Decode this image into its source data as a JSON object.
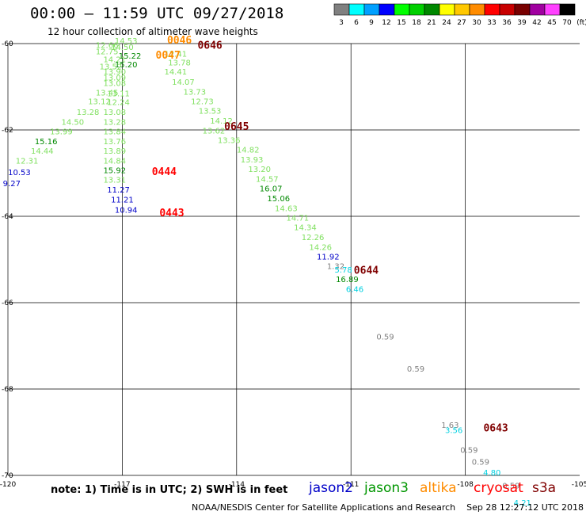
{
  "header": {
    "title": "00:00 – 11:59 UTC 09/27/2018",
    "subtitle": "12 hour collection of altimeter wave heights"
  },
  "legend_scale": {
    "labels": [
      "3",
      "6",
      "9",
      "12",
      "15",
      "18",
      "21",
      "24",
      "27",
      "30",
      "33",
      "36",
      "39",
      "42",
      "45",
      "70",
      "(ft)"
    ],
    "colors": [
      "#808080",
      "#00ffff",
      "#00a0ff",
      "#0000ff",
      "#00ff00",
      "#00d000",
      "#008800",
      "#ffff00",
      "#ffc800",
      "#ff8c00",
      "#ff0000",
      "#c80000",
      "#780000",
      "#a000a0",
      "#ff40ff",
      "#000000"
    ]
  },
  "footer": {
    "note": "note: 1) Time is in UTC; 2) SWH is in feet",
    "credit": "NOAA/NESDIS Center for Satellite Applications and Research    Sep 28 12:27:12 UTC 2018",
    "satellites": [
      {
        "name": "jason2",
        "color": "#0000c8"
      },
      {
        "name": "jason3",
        "color": "#009600"
      },
      {
        "name": "altika",
        "color": "#ff8c00"
      },
      {
        "name": "cryosat",
        "color": "#ff0000"
      },
      {
        "name": "s3a",
        "color": "#800000"
      }
    ]
  },
  "chart_data": {
    "type": "scatter",
    "title": "00:00 – 11:59 UTC 09/27/2018",
    "subtitle": "12 hour collection of altimeter wave heights",
    "xlim": [
      -120,
      -105
    ],
    "ylim": [
      -70,
      -60
    ],
    "x_ticks": [
      -120,
      -117,
      -114,
      -111,
      -108,
      -105
    ],
    "x_tick_labels": [
      "-120",
      "-117",
      "-114",
      "-111",
      "-108",
      "-105"
    ],
    "y_ticks": [
      -60,
      -62,
      -64,
      -66,
      -68,
      -70
    ],
    "y_tick_labels": [
      "-60",
      "-62",
      "-64",
      "-66",
      "-68",
      "-70"
    ],
    "series": [
      {
        "name": "pass1",
        "points": [
          {
            "x": -116.9,
            "y": -60.0,
            "v": "14.53",
            "c": "#80e060"
          },
          {
            "x": -117.0,
            "y": -60.15,
            "v": "14.50",
            "c": "#80e060"
          },
          {
            "x": -117.4,
            "y": -60.1,
            "v": "12.66",
            "c": "#80e060"
          },
          {
            "x": -117.4,
            "y": -60.25,
            "v": "12.75",
            "c": "#80e060"
          },
          {
            "x": -116.8,
            "y": -60.35,
            "v": "15.22",
            "c": "#008800"
          },
          {
            "x": -117.2,
            "y": -60.43,
            "v": "14.21",
            "c": "#80e060"
          },
          {
            "x": -116.9,
            "y": -60.55,
            "v": "15.20",
            "c": "#008800"
          },
          {
            "x": -117.3,
            "y": -60.6,
            "v": "13.52",
            "c": "#80e060"
          },
          {
            "x": -117.2,
            "y": -60.72,
            "v": "13.90",
            "c": "#80e060"
          },
          {
            "x": -117.2,
            "y": -60.85,
            "v": "13.09",
            "c": "#80e060"
          },
          {
            "x": -117.2,
            "y": -60.98,
            "v": "13.08",
            "c": "#80e060"
          },
          {
            "x": -117.4,
            "y": -61.2,
            "v": "13.45",
            "c": "#80e060"
          },
          {
            "x": -117.1,
            "y": -61.22,
            "v": "13.11",
            "c": "#80e060"
          },
          {
            "x": -117.6,
            "y": -61.4,
            "v": "13.12",
            "c": "#80e060"
          },
          {
            "x": -117.1,
            "y": -61.42,
            "v": "12.24",
            "c": "#80e060"
          },
          {
            "x": -117.9,
            "y": -61.65,
            "v": "13.28",
            "c": "#80e060"
          },
          {
            "x": -117.2,
            "y": -61.65,
            "v": "13.08",
            "c": "#80e060"
          },
          {
            "x": -118.3,
            "y": -61.88,
            "v": "14.50",
            "c": "#80e060"
          },
          {
            "x": -117.2,
            "y": -61.88,
            "v": "13.28",
            "c": "#80e060"
          },
          {
            "x": -118.6,
            "y": -62.1,
            "v": "13.99",
            "c": "#80e060"
          },
          {
            "x": -117.2,
            "y": -62.1,
            "v": "13.84",
            "c": "#80e060"
          },
          {
            "x": -119.0,
            "y": -62.33,
            "v": "15.16",
            "c": "#008800"
          },
          {
            "x": -117.2,
            "y": -62.33,
            "v": "13.76",
            "c": "#80e060"
          },
          {
            "x": -119.1,
            "y": -62.55,
            "v": "14.44",
            "c": "#80e060"
          },
          {
            "x": -117.2,
            "y": -62.55,
            "v": "13.89",
            "c": "#80e060"
          },
          {
            "x": -119.5,
            "y": -62.78,
            "v": "12.31",
            "c": "#80e060"
          },
          {
            "x": -117.2,
            "y": -62.78,
            "v": "14.84",
            "c": "#80e060"
          },
          {
            "x": -117.2,
            "y": -63.0,
            "v": "15.92",
            "c": "#008800"
          },
          {
            "x": -119.7,
            "y": -63.05,
            "v": "10.53",
            "c": "#0000c8"
          },
          {
            "x": -117.2,
            "y": -63.22,
            "v": "13.31",
            "c": "#80e060"
          },
          {
            "x": -119.9,
            "y": -63.3,
            "v": "9.27",
            "c": "#0000c8"
          },
          {
            "x": -117.1,
            "y": -63.45,
            "v": "11.27",
            "c": "#0000c8"
          },
          {
            "x": -117.0,
            "y": -63.68,
            "v": "11.21",
            "c": "#0000c8"
          },
          {
            "x": -116.9,
            "y": -63.92,
            "v": "10.94",
            "c": "#0000c8"
          }
        ]
      },
      {
        "name": "pass2",
        "points": [
          {
            "x": -115.6,
            "y": -60.3,
            "v": "12.41",
            "c": "#80e060"
          },
          {
            "x": -115.5,
            "y": -60.5,
            "v": "13.78",
            "c": "#80e060"
          },
          {
            "x": -115.6,
            "y": -60.72,
            "v": "14.41",
            "c": "#80e060"
          },
          {
            "x": -115.4,
            "y": -60.95,
            "v": "14.07",
            "c": "#80e060"
          },
          {
            "x": -115.1,
            "y": -61.18,
            "v": "13.73",
            "c": "#80e060"
          },
          {
            "x": -114.9,
            "y": -61.4,
            "v": "12.73",
            "c": "#80e060"
          },
          {
            "x": -114.7,
            "y": -61.62,
            "v": "13.53",
            "c": "#80e060"
          },
          {
            "x": -114.4,
            "y": -61.85,
            "v": "14.12",
            "c": "#80e060"
          },
          {
            "x": -114.6,
            "y": -62.08,
            "v": "13.62",
            "c": "#80e060"
          },
          {
            "x": -114.2,
            "y": -62.3,
            "v": "13.36",
            "c": "#80e060"
          },
          {
            "x": -113.7,
            "y": -62.52,
            "v": "14.82",
            "c": "#80e060"
          },
          {
            "x": -113.6,
            "y": -62.75,
            "v": "13.93",
            "c": "#80e060"
          },
          {
            "x": -113.4,
            "y": -62.97,
            "v": "13.20",
            "c": "#80e060"
          },
          {
            "x": -113.2,
            "y": -63.2,
            "v": "14.57",
            "c": "#80e060"
          },
          {
            "x": -113.1,
            "y": -63.42,
            "v": "16.07",
            "c": "#008800"
          },
          {
            "x": -112.9,
            "y": -63.65,
            "v": "15.06",
            "c": "#008800"
          },
          {
            "x": -112.7,
            "y": -63.88,
            "v": "14.63",
            "c": "#80e060"
          },
          {
            "x": -112.4,
            "y": -64.1,
            "v": "14.71",
            "c": "#80e060"
          },
          {
            "x": -112.2,
            "y": -64.32,
            "v": "14.34",
            "c": "#80e060"
          },
          {
            "x": -112.0,
            "y": -64.55,
            "v": "12.26",
            "c": "#80e060"
          },
          {
            "x": -111.8,
            "y": -64.78,
            "v": "14.26",
            "c": "#80e060"
          },
          {
            "x": -111.6,
            "y": -65.0,
            "v": "11.92",
            "c": "#0000c8"
          },
          {
            "x": -111.4,
            "y": -65.22,
            "v": "1.32",
            "c": "#808080"
          },
          {
            "x": -111.2,
            "y": -65.3,
            "v": "5.78",
            "c": "#00d0e0"
          },
          {
            "x": -111.1,
            "y": -65.52,
            "v": "16.89",
            "c": "#008800"
          },
          {
            "x": -110.9,
            "y": -65.75,
            "v": "6.46",
            "c": "#00d0e0"
          }
        ]
      },
      {
        "name": "pass3",
        "points": [
          {
            "x": -110.1,
            "y": -66.85,
            "v": "0.59",
            "c": "#808080"
          },
          {
            "x": -109.3,
            "y": -67.6,
            "v": "0.59",
            "c": "#808080"
          },
          {
            "x": -108.4,
            "y": -68.9,
            "v": "1.63",
            "c": "#808080"
          },
          {
            "x": -108.3,
            "y": -69.02,
            "v": "3.56",
            "c": "#00d0e0"
          },
          {
            "x": -107.9,
            "y": -69.48,
            "v": "0.59",
            "c": "#808080"
          },
          {
            "x": -107.6,
            "y": -69.75,
            "v": "0.59",
            "c": "#808080"
          },
          {
            "x": -107.3,
            "y": -70.0,
            "v": "4.80",
            "c": "#00d0e0"
          },
          {
            "x": -106.8,
            "y": -70.3,
            "v": "0.59",
            "c": "#808080"
          },
          {
            "x": -106.5,
            "y": -70.7,
            "v": "4.21",
            "c": "#00d0e0"
          }
        ]
      }
    ],
    "time_labels": [
      {
        "x": -115.5,
        "y": -60.0,
        "text": "0046",
        "c": "#ff8c00"
      },
      {
        "x": -115.8,
        "y": -60.35,
        "text": "0047",
        "c": "#ff8c00"
      },
      {
        "x": -114.7,
        "y": -60.12,
        "text": "0646",
        "c": "#800000"
      },
      {
        "x": -114.0,
        "y": -62.0,
        "text": "0645",
        "c": "#800000"
      },
      {
        "x": -115.9,
        "y": -63.05,
        "text": "0444",
        "c": "#ff0000"
      },
      {
        "x": -115.7,
        "y": -64.0,
        "text": "0443",
        "c": "#ff0000"
      },
      {
        "x": -110.6,
        "y": -65.33,
        "text": "0644",
        "c": "#800000"
      },
      {
        "x": -107.2,
        "y": -68.98,
        "text": "0643",
        "c": "#800000"
      }
    ]
  }
}
